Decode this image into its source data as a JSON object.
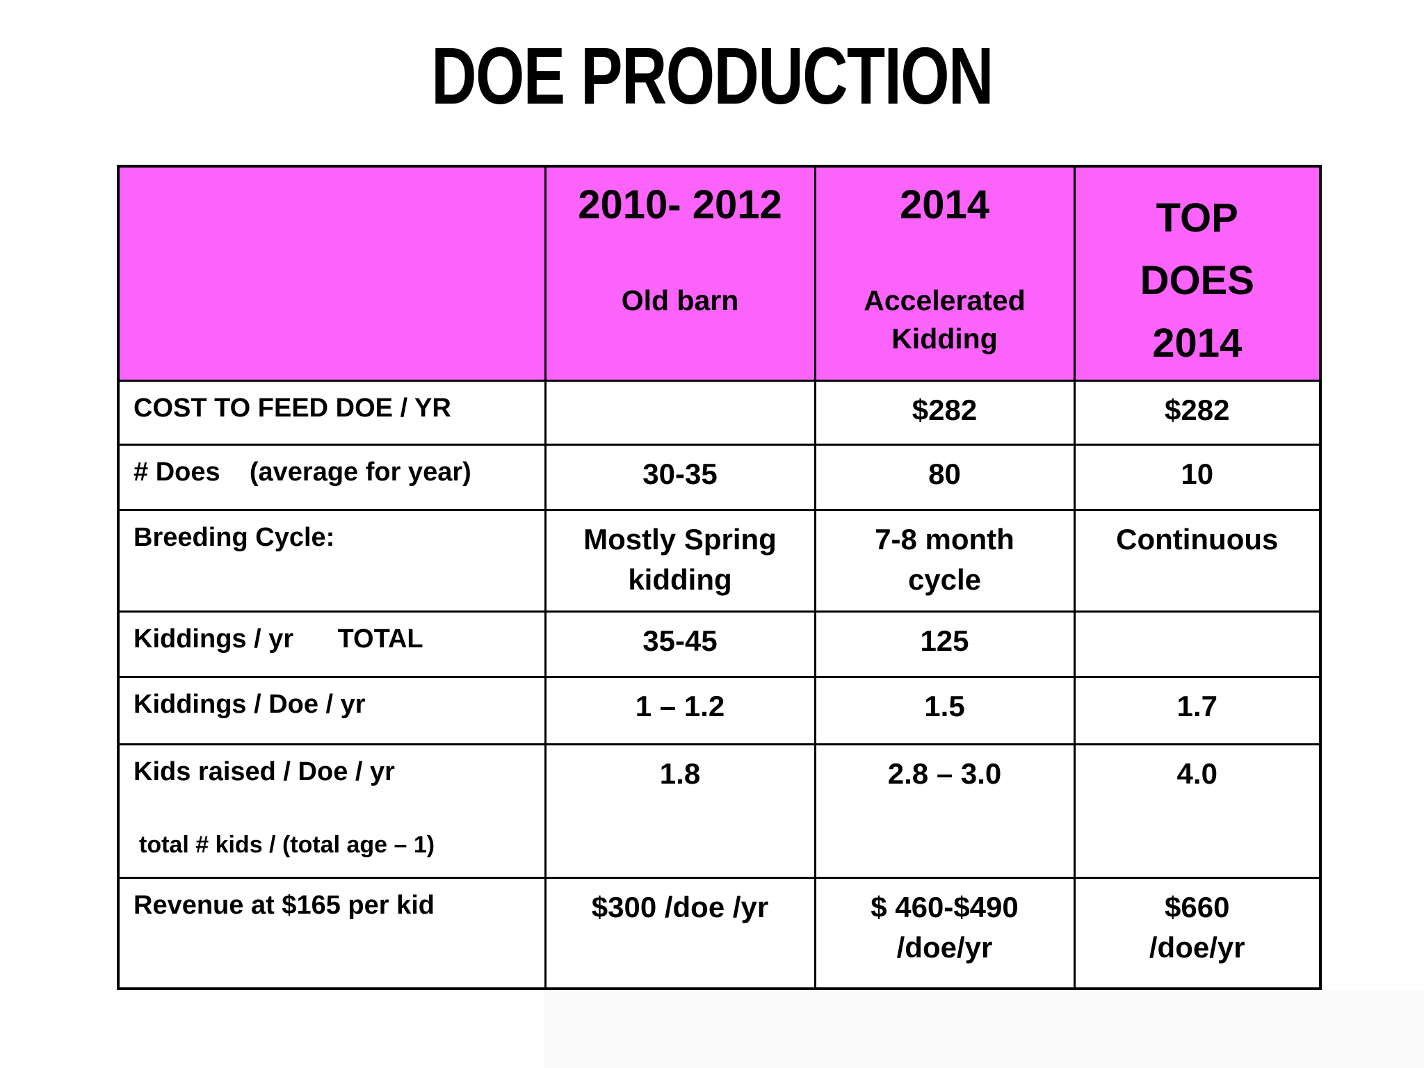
{
  "title": "DOE PRODUCTION",
  "colors": {
    "header_bg": "#FB63FA",
    "border": "#000000",
    "page_bg": "#FFFFFF"
  },
  "table": {
    "columns": [
      {
        "title": "",
        "subtitle": ""
      },
      {
        "title": "2010- 2012",
        "subtitle": "Old barn"
      },
      {
        "title": "2014",
        "subtitle": "Accelerated\nKidding"
      },
      {
        "title": "TOP\nDOES\n2014",
        "subtitle": ""
      }
    ],
    "rows": [
      {
        "label": "COST TO FEED DOE / YR",
        "sublabel": "",
        "values": [
          "",
          "$282",
          "$282"
        ]
      },
      {
        "label": "# Does    (average for year)",
        "sublabel": "",
        "values": [
          "30-35",
          "80",
          "10"
        ]
      },
      {
        "label": "Breeding Cycle:",
        "sublabel": "",
        "values": [
          "Mostly Spring\nkidding",
          "7-8 month\ncycle",
          "Continuous"
        ]
      },
      {
        "label": "Kiddings / yr      TOTAL",
        "sublabel": "",
        "values": [
          "35-45",
          "125",
          ""
        ]
      },
      {
        "label": "Kiddings / Doe / yr",
        "sublabel": "",
        "values": [
          "1 – 1.2",
          "1.5",
          "1.7"
        ]
      },
      {
        "label": "Kids raised / Doe / yr",
        "sublabel": "total # kids / (total age – 1)",
        "values": [
          "1.8",
          "2.8 – 3.0",
          "4.0"
        ]
      },
      {
        "label": "Revenue at $165 per kid",
        "sublabel": "",
        "values": [
          "$300 /doe /yr",
          "$ 460-$490\n/doe/yr",
          "$660\n/doe/yr"
        ]
      }
    ]
  }
}
